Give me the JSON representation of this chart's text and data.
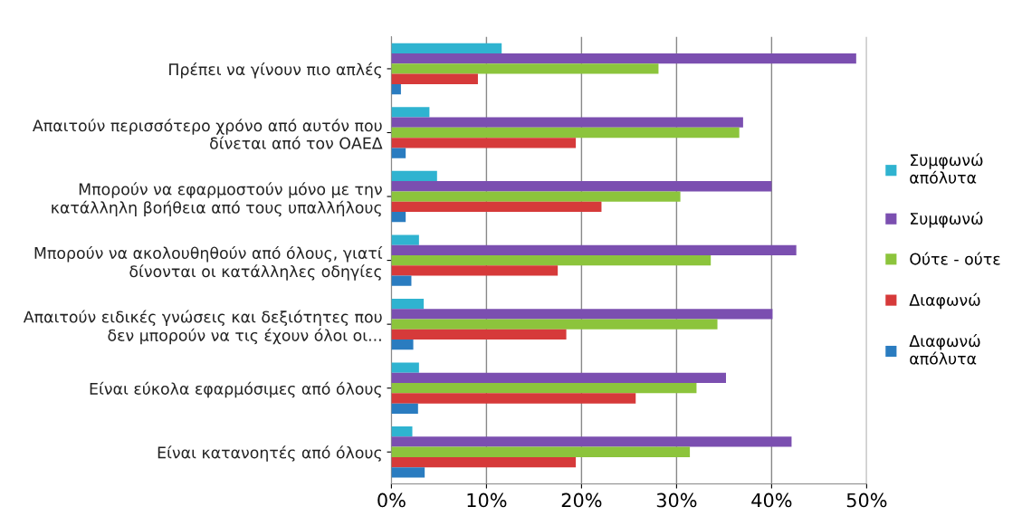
{
  "chart_data": {
    "type": "bar",
    "orientation": "horizontal",
    "categories": [
      "Πρέπει να γίνουν πιο απλές",
      "Απαιτούν περισσότερο χρόνο από αυτόν που\nδίνεται από τον ΟΑΕΔ",
      "Μπορούν να εφαρμοστούν μόνο με την\nκατάλληλη βοήθεια από τους υπαλλήλους",
      "Μπορούν να ακολουθηθούν από όλους, γιατί\nδίνονται οι κατάλληλες οδηγίες",
      "Απαιτούν ειδικές γνώσεις και δεξιότητες που\nδεν μπορούν να τις έχουν όλοι οι...",
      "Είναι εύκολα εφαρμόσιμες από όλους",
      "Είναι κατανοητές από όλους"
    ],
    "series": [
      {
        "name": "Συμφωνώ\nαπόλυτα",
        "color": "#2fb3d0",
        "values": [
          11.6,
          4.0,
          4.8,
          2.9,
          3.4,
          2.9,
          2.2
        ]
      },
      {
        "name": "Συμφωνώ",
        "color": "#7b4fb0",
        "values": [
          48.9,
          37.0,
          40.0,
          42.6,
          40.1,
          35.2,
          42.1
        ]
      },
      {
        "name": "Ούτε - ούτε",
        "color": "#8cc43c",
        "values": [
          28.1,
          36.6,
          30.4,
          33.6,
          34.3,
          32.1,
          31.4
        ]
      },
      {
        "name": "Διαφωνώ",
        "color": "#d63a3a",
        "values": [
          9.1,
          19.4,
          22.1,
          17.5,
          18.4,
          25.7,
          19.4
        ]
      },
      {
        "name": "Διαφωνώ\nαπόλυτα",
        "color": "#2a7cc0",
        "values": [
          1.0,
          1.5,
          1.5,
          2.1,
          2.3,
          2.8,
          3.5
        ]
      }
    ],
    "xlim": [
      0,
      50
    ],
    "xticks": [
      {
        "value": 0,
        "label": "0%"
      },
      {
        "value": 10,
        "label": "10%"
      },
      {
        "value": 20,
        "label": "20%"
      },
      {
        "value": 30,
        "label": "30%"
      },
      {
        "value": 40,
        "label": "40%"
      },
      {
        "value": 50,
        "label": "50%"
      }
    ],
    "grid": "x",
    "legend": "right"
  }
}
